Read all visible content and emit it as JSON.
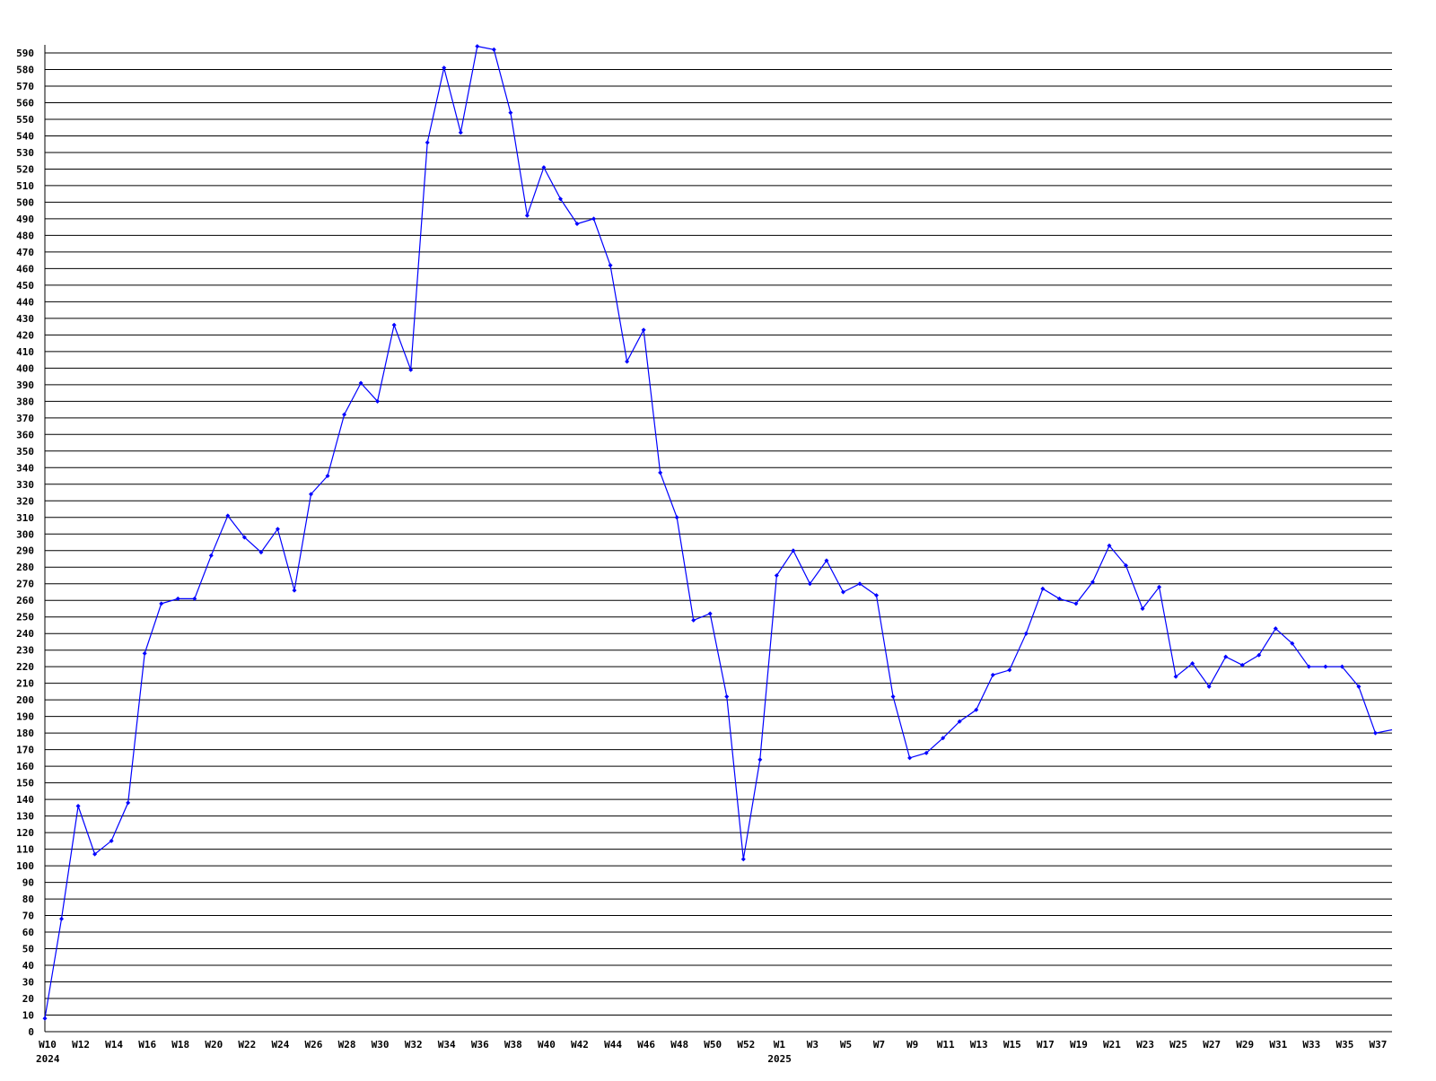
{
  "chart_data": {
    "type": "line",
    "title": "",
    "xlabel": "",
    "ylabel": "",
    "ylim": [
      0,
      590
    ],
    "y_tick_step": 10,
    "grid": "horizontal",
    "legend": "none",
    "line_color": "#0000ff",
    "grid_color": "#000000",
    "categories": [
      "W10",
      "",
      "W12",
      "",
      "W14",
      "",
      "W16",
      "",
      "W18",
      "",
      "W20",
      "",
      "W22",
      "",
      "W24",
      "",
      "W26",
      "",
      "W28",
      "",
      "W30",
      "",
      "W32",
      "",
      "W34",
      "",
      "W36",
      "",
      "W38",
      "",
      "W40",
      "",
      "W42",
      "",
      "W44",
      "",
      "W46",
      "",
      "W48",
      "",
      "W50",
      "",
      "W52",
      "",
      "W1",
      "",
      "W3",
      "",
      "W5",
      "",
      "W7",
      "",
      "W9",
      "",
      "W11",
      "",
      "W13",
      "",
      "W15",
      "",
      "W17",
      "",
      "W19",
      "",
      "W21",
      "",
      "W23",
      "",
      "W25",
      "",
      "W27",
      "",
      "W29",
      "",
      "W31",
      "",
      "W33",
      "",
      "W35",
      "",
      "W37",
      ""
    ],
    "year_labels": [
      {
        "label": "2024",
        "under": "W10"
      },
      {
        "label": "2025",
        "under": "W1"
      }
    ],
    "values": [
      8,
      68,
      136,
      107,
      115,
      138,
      228,
      258,
      261,
      261,
      287,
      311,
      298,
      289,
      303,
      266,
      324,
      335,
      372,
      391,
      380,
      426,
      399,
      536,
      581,
      542,
      594,
      592,
      554,
      492,
      521,
      502,
      487,
      490,
      462,
      404,
      423,
      337,
      310,
      248,
      252,
      202,
      104,
      164,
      275,
      290,
      270,
      284,
      265,
      270,
      263,
      202,
      165,
      168,
      177,
      187,
      194,
      215,
      218,
      240,
      267,
      261,
      258,
      271,
      293,
      281,
      255,
      268,
      214,
      222,
      208,
      226,
      221,
      227,
      243,
      234,
      220,
      220,
      220,
      208,
      180,
      182
    ]
  }
}
